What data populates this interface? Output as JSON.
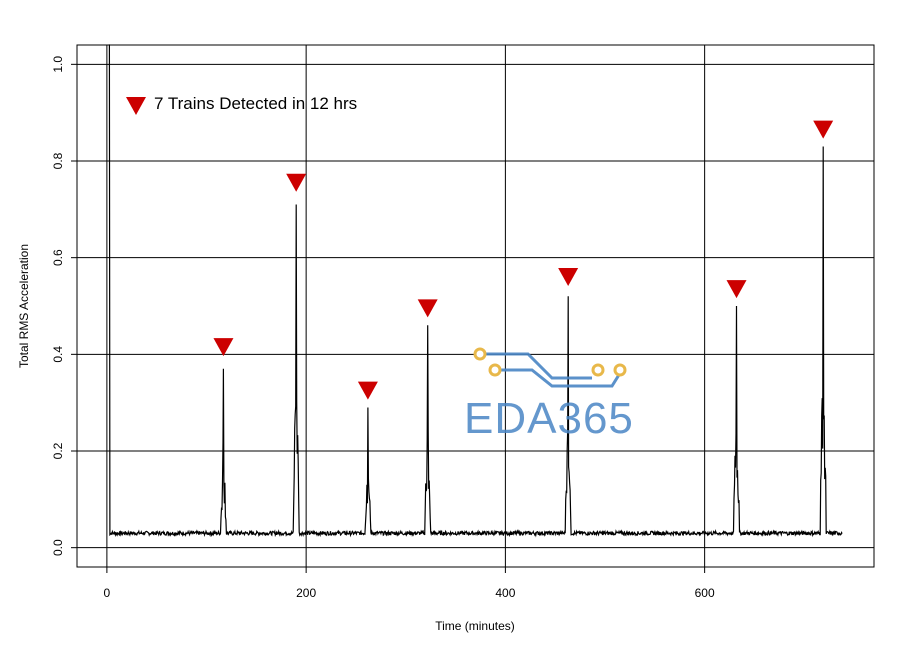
{
  "chart_data": {
    "type": "line",
    "title": "",
    "xlabel": "Time (minutes)",
    "ylabel": "Total RMS Acceleration",
    "xlim": [
      -30,
      770
    ],
    "ylim": [
      -0.04,
      1.04
    ],
    "x_ticks": [
      0,
      200,
      400,
      600
    ],
    "y_ticks": [
      0.0,
      0.2,
      0.4,
      0.6,
      0.8,
      1.0
    ],
    "x_tick_labels": [
      "0",
      "200",
      "400",
      "600"
    ],
    "y_tick_labels": [
      "0.0",
      "0.2",
      "0.4",
      "0.6",
      "0.8",
      "1.0"
    ],
    "grid": true,
    "baseline": 0.03,
    "series": [
      {
        "values_description_peaks": [
          {
            "x": 2,
            "y": 1.04
          },
          {
            "x": 117,
            "y": 0.37
          },
          {
            "x": 190,
            "y": 0.71
          },
          {
            "x": 262,
            "y": 0.29
          },
          {
            "x": 322,
            "y": 0.46
          },
          {
            "x": 463,
            "y": 0.52
          },
          {
            "x": 632,
            "y": 0.5
          },
          {
            "x": 719,
            "y": 0.83
          }
        ],
        "x_end": 738
      }
    ],
    "markers": {
      "shape": "downward-triangle",
      "color": "#cc0000",
      "points": [
        {
          "x": 117,
          "y": 0.415
        },
        {
          "x": 190,
          "y": 0.755
        },
        {
          "x": 262,
          "y": 0.325
        },
        {
          "x": 322,
          "y": 0.495
        },
        {
          "x": 463,
          "y": 0.56
        },
        {
          "x": 632,
          "y": 0.535
        },
        {
          "x": 719,
          "y": 0.865
        }
      ]
    },
    "legend": {
      "placement": "top-left",
      "entries": [
        {
          "label": "7 Trains Detected in 12 hrs",
          "marker": "downward-triangle",
          "color": "#cc0000"
        }
      ]
    }
  },
  "watermark": {
    "text": "EDA365",
    "text_color": "#4a86c5",
    "circuit_color": "#4a86c5",
    "node_color": "#e8b84a"
  }
}
